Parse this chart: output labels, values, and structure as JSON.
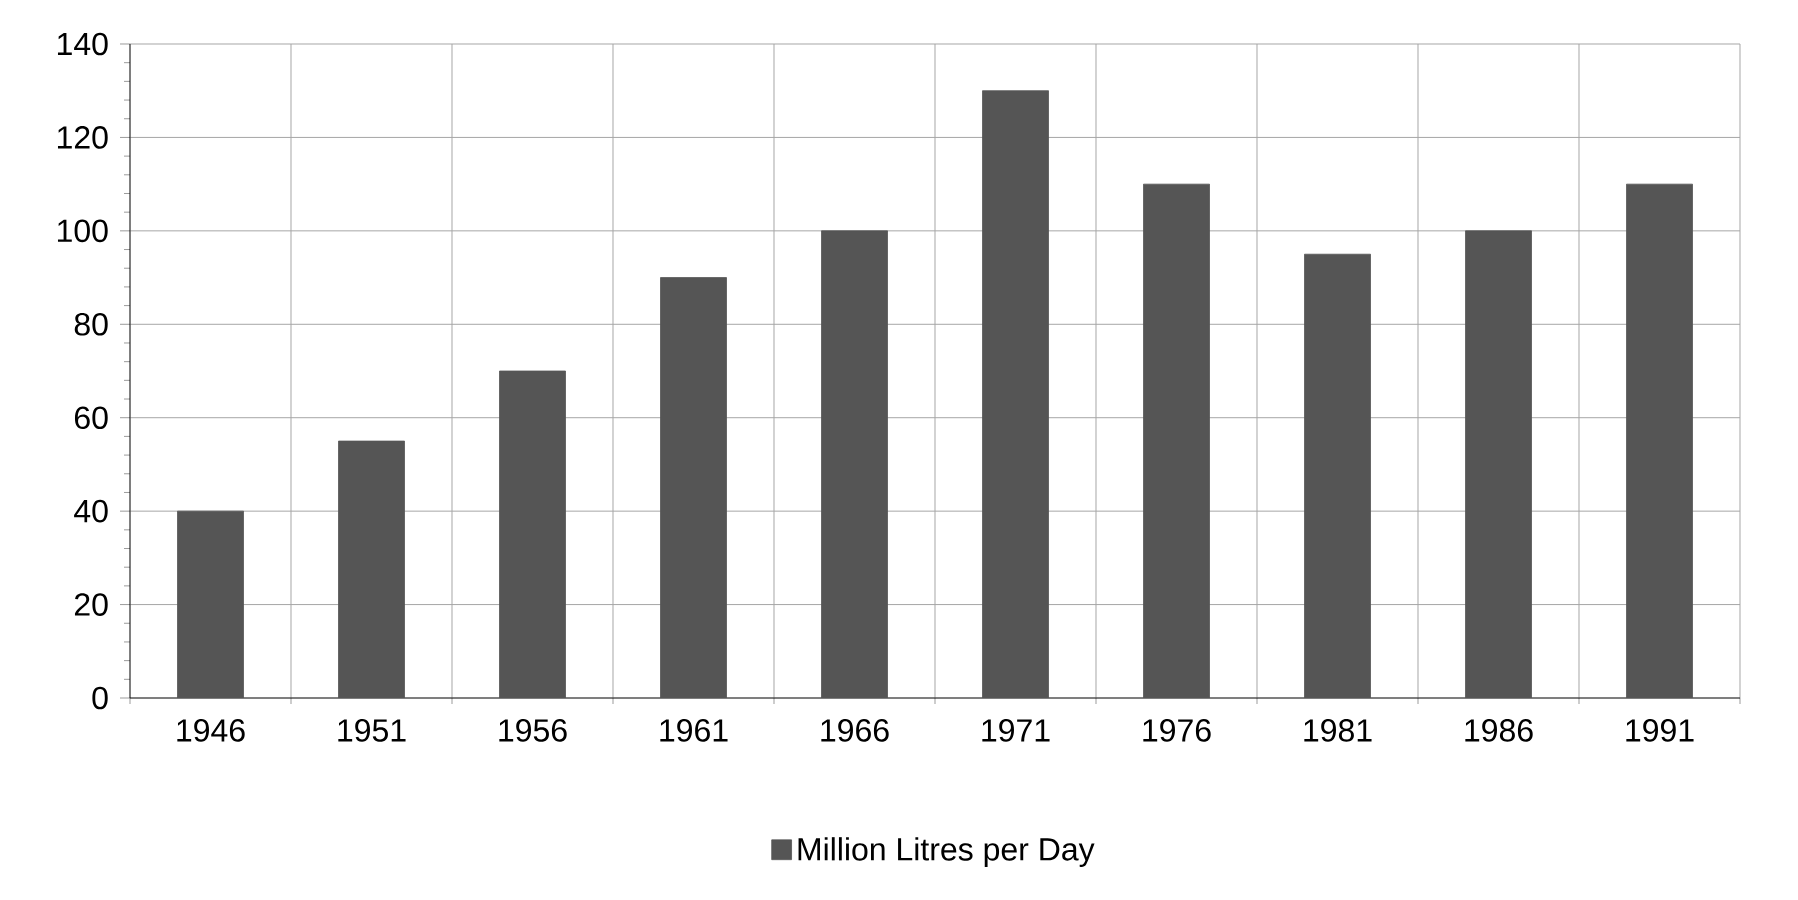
{
  "chart_data": {
    "type": "bar",
    "categories": [
      "1946",
      "1951",
      "1956",
      "1961",
      "1966",
      "1971",
      "1976",
      "1981",
      "1986",
      "1991"
    ],
    "series": [
      {
        "name": "Million Litres per Day",
        "color": "#555555",
        "values": [
          40,
          55,
          70,
          90,
          100,
          130,
          110,
          95,
          100,
          110
        ]
      }
    ],
    "ylim": [
      0,
      140
    ],
    "yticks": [
      0,
      20,
      40,
      60,
      80,
      100,
      120,
      140
    ],
    "grid": true,
    "legend": "bottom"
  }
}
